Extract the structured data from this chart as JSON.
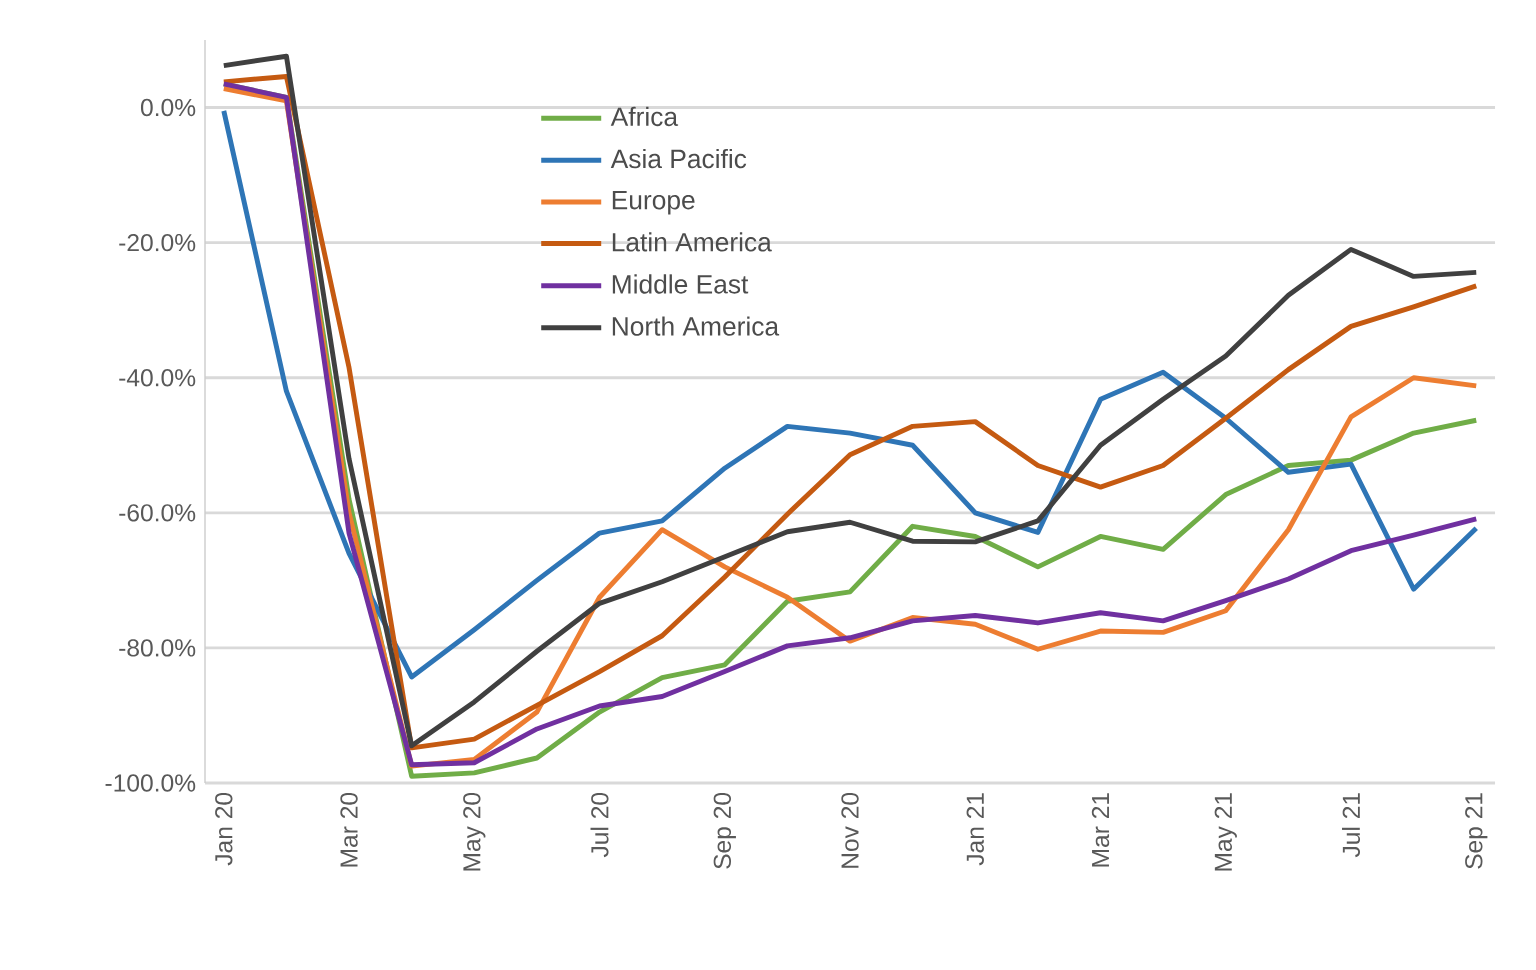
{
  "chart_data": {
    "type": "line",
    "categories": [
      "Jan 20",
      null,
      "Mar 20",
      null,
      "May 20",
      null,
      "Jul 20",
      null,
      "Sep 20",
      null,
      "Nov 20",
      null,
      "Jan 21",
      null,
      "Mar 21",
      null,
      "May 21",
      null,
      "Jul 21",
      null,
      "Sep 21"
    ],
    "series": [
      {
        "name": "Africa",
        "color": "#70ad47",
        "values": [
          3.5,
          1.5,
          -58,
          -99,
          -98.5,
          -96.3,
          -89.5,
          -84.4,
          -82.5,
          -73.1,
          -71.7,
          -62,
          -63.5,
          -68,
          -63.5,
          -65.4,
          -57.3,
          -53,
          -52.2,
          -48.2,
          -46.3
        ]
      },
      {
        "name": "Asia Pacific",
        "color": "#2e75b6",
        "values": [
          -0.5,
          -42,
          -66,
          -84.3,
          -77.3,
          -70,
          -63,
          -61.2,
          -53.4,
          -47.2,
          -48.2,
          -50,
          -60,
          -62.9,
          -43.2,
          -39.2,
          -46,
          -54,
          -52.8,
          -71.3,
          -62.3
        ]
      },
      {
        "name": "Europe",
        "color": "#ed7d31",
        "values": [
          2.8,
          1,
          -60,
          -97.5,
          -96.5,
          -89.5,
          -72.5,
          -62.5,
          -68,
          -72.5,
          -79,
          -75.5,
          -76.5,
          -80.2,
          -77.5,
          -77.7,
          -74.5,
          -62.5,
          -45.8,
          -40,
          -41.2
        ]
      },
      {
        "name": "Latin America",
        "color": "#c55a11",
        "values": [
          3.8,
          4.6,
          -38.5,
          -94.8,
          -93.5,
          -88.5,
          -83.5,
          -78.2,
          -69.5,
          -60.2,
          -51.4,
          -47.2,
          -46.5,
          -53,
          -56.2,
          -53,
          -46,
          -38.8,
          -32.4,
          -29.5,
          -26.4
        ]
      },
      {
        "name": "Middle East",
        "color": "#7030a0",
        "values": [
          3.5,
          1.5,
          -63,
          -97.3,
          -97,
          -92,
          -88.6,
          -87.2,
          -83.5,
          -79.7,
          -78.5,
          -76,
          -75.2,
          -76.3,
          -74.8,
          -76,
          -73,
          -69.8,
          -65.6,
          -63.3,
          -60.9
        ]
      },
      {
        "name": "North America",
        "color": "#404040",
        "values": [
          6.2,
          7.6,
          -52,
          -94.5,
          -88,
          -80.5,
          -73.4,
          -70.2,
          -66.5,
          -62.8,
          -61.4,
          -64.2,
          -64.3,
          -61.2,
          -50,
          -43.2,
          -36.8,
          -27.8,
          -21,
          -25,
          -24.4
        ]
      }
    ],
    "ylim": [
      -100,
      10
    ],
    "yticks": [
      {
        "value": -100,
        "label": "-100.0%"
      },
      {
        "value": -80,
        "label": "-80.0%"
      },
      {
        "value": -60,
        "label": "-60.0%"
      },
      {
        "value": -40,
        "label": "-40.0%"
      },
      {
        "value": -20,
        "label": "-20.0%"
      },
      {
        "value": 0,
        "label": "0.0%"
      }
    ],
    "grid": "y",
    "legend": "top",
    "marker": "none",
    "line_style": "solid"
  }
}
